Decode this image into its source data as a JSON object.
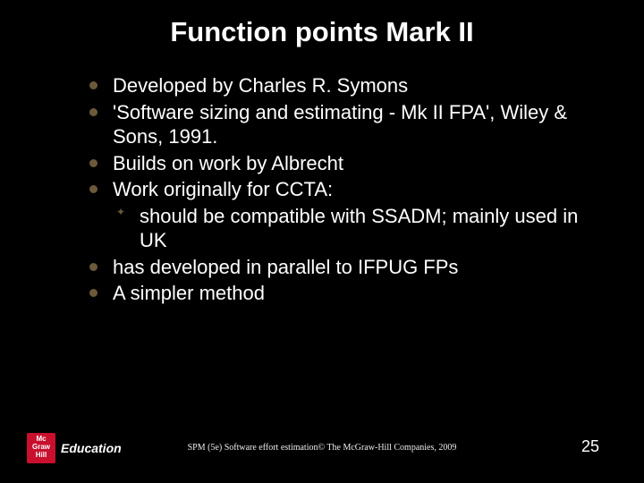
{
  "title": "Function points Mark II",
  "bullets": {
    "b0": "Developed by Charles R. Symons",
    "b1": "'Software sizing and estimating - Mk II FPA', Wiley & Sons, 1991.",
    "b2": "Builds on work by Albrecht",
    "b3": "Work originally for CCTA:",
    "b3_sub0": "should be compatible with SSADM; mainly used in UK",
    "b4": "has developed in parallel to IFPUG FPs",
    "b5": "A simpler method"
  },
  "footer": {
    "logo_lines": "Mc\nGraw\nHill",
    "brand": "Education",
    "center": "SPM (5e) Software effort estimation© The McGraw-Hill Companies, 2009",
    "page": "25"
  },
  "colors": {
    "background": "#000000",
    "text": "#ffffff",
    "bullet": "#6b5a3a",
    "logo_bg": "#c8102e"
  }
}
